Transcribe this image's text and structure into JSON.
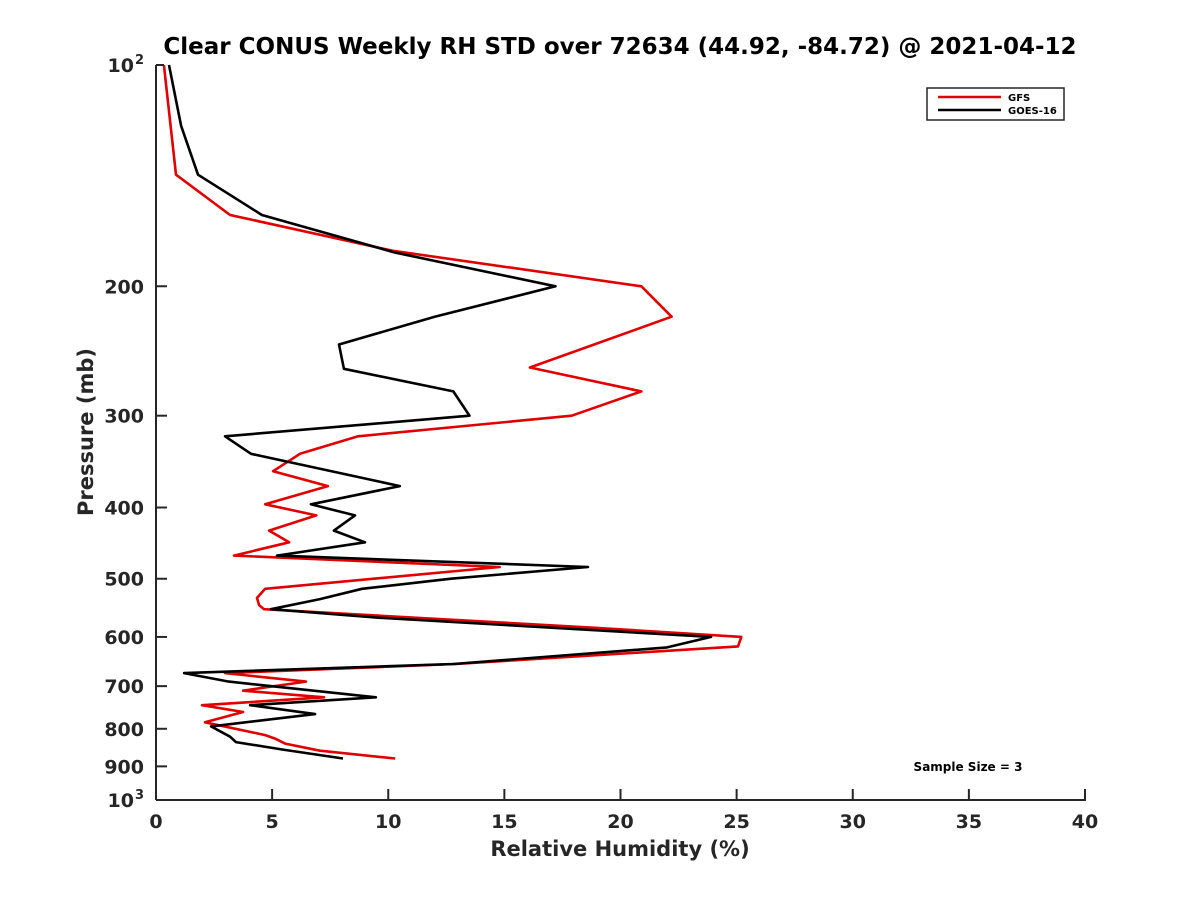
{
  "chart_data": {
    "type": "line",
    "title": "Clear CONUS Weekly RH STD over 72634 (44.92, -84.72) @ 2021-04-12",
    "xlabel": "Relative Humidity (%)",
    "ylabel": "Pressure (mb)",
    "xlim": [
      0,
      40
    ],
    "ylim": [
      100,
      1000
    ],
    "yscale": "log",
    "yreverse": true,
    "grid": false,
    "xticks": [
      0,
      5,
      10,
      15,
      20,
      25,
      30,
      35,
      40
    ],
    "xtick_labels": [
      "0",
      "5",
      "10",
      "15",
      "20",
      "25",
      "30",
      "35",
      "40"
    ],
    "yticks": [
      100,
      200,
      300,
      400,
      500,
      600,
      700,
      800,
      900,
      1000
    ],
    "ytick_labels": [
      "10",
      "200",
      "300",
      "400",
      "500",
      "600",
      "700",
      "800",
      "900",
      "10"
    ],
    "ytick_exponents": [
      "2",
      "",
      "",
      "",
      "",
      "",
      "",
      "",
      "",
      "3"
    ],
    "legend_position": "top-right",
    "annotation": "Sample Size = 3",
    "series": [
      {
        "name": "GFS",
        "color": "#e00000",
        "points": [
          [
            0.34,
            100
          ],
          [
            0.86,
            141
          ],
          [
            3.19,
            160
          ],
          [
            10.2,
            179
          ],
          [
            20.9,
            200
          ],
          [
            22.2,
            220
          ],
          [
            16.1,
            258
          ],
          [
            20.9,
            278
          ],
          [
            17.9,
            300
          ],
          [
            8.7,
            320
          ],
          [
            6.2,
            338
          ],
          [
            5.04,
            357
          ],
          [
            7.4,
            374
          ],
          [
            4.7,
            396
          ],
          [
            6.9,
            410
          ],
          [
            4.87,
            430
          ],
          [
            5.73,
            446
          ],
          [
            3.36,
            465
          ],
          [
            14.8,
            482
          ],
          [
            4.7,
            516
          ],
          [
            4.35,
            531
          ],
          [
            4.44,
            543
          ],
          [
            4.65,
            550
          ],
          [
            18.9,
            583
          ],
          [
            25.2,
            600
          ],
          [
            25.06,
            618
          ],
          [
            12.9,
            653
          ],
          [
            2.97,
            672
          ],
          [
            6.46,
            690
          ],
          [
            3.75,
            710
          ],
          [
            7.24,
            725
          ],
          [
            1.98,
            743
          ],
          [
            3.75,
            759
          ],
          [
            2.11,
            784
          ],
          [
            4.7,
            816
          ],
          [
            5.13,
            825
          ],
          [
            5.56,
            838
          ],
          [
            7.06,
            857
          ],
          [
            10.3,
            878
          ]
        ]
      },
      {
        "name": "GOES-16",
        "color": "#000000",
        "points": [
          [
            0.56,
            100
          ],
          [
            1.08,
            121
          ],
          [
            1.81,
            141
          ],
          [
            4.56,
            160
          ],
          [
            10.3,
            180
          ],
          [
            17.2,
            200
          ],
          [
            12.0,
            220
          ],
          [
            7.88,
            240
          ],
          [
            8.09,
            259
          ],
          [
            12.8,
            278
          ],
          [
            13.5,
            300
          ],
          [
            2.97,
            320
          ],
          [
            4.09,
            338
          ],
          [
            10.5,
            374
          ],
          [
            6.67,
            396
          ],
          [
            8.57,
            410
          ],
          [
            7.66,
            430
          ],
          [
            9.0,
            446
          ],
          [
            5.21,
            465
          ],
          [
            18.6,
            482
          ],
          [
            12.7,
            500
          ],
          [
            8.87,
            516
          ],
          [
            7.06,
            533
          ],
          [
            4.95,
            550
          ],
          [
            9.64,
            565
          ],
          [
            23.9,
            600
          ],
          [
            22.0,
            620
          ],
          [
            12.8,
            653
          ],
          [
            1.21,
            672
          ],
          [
            3.14,
            690
          ],
          [
            9.47,
            725
          ],
          [
            4.05,
            743
          ],
          [
            6.85,
            764
          ],
          [
            2.37,
            794
          ],
          [
            3.19,
            820
          ],
          [
            3.44,
            834
          ],
          [
            5.47,
            854
          ],
          [
            8.05,
            878
          ]
        ]
      }
    ]
  }
}
